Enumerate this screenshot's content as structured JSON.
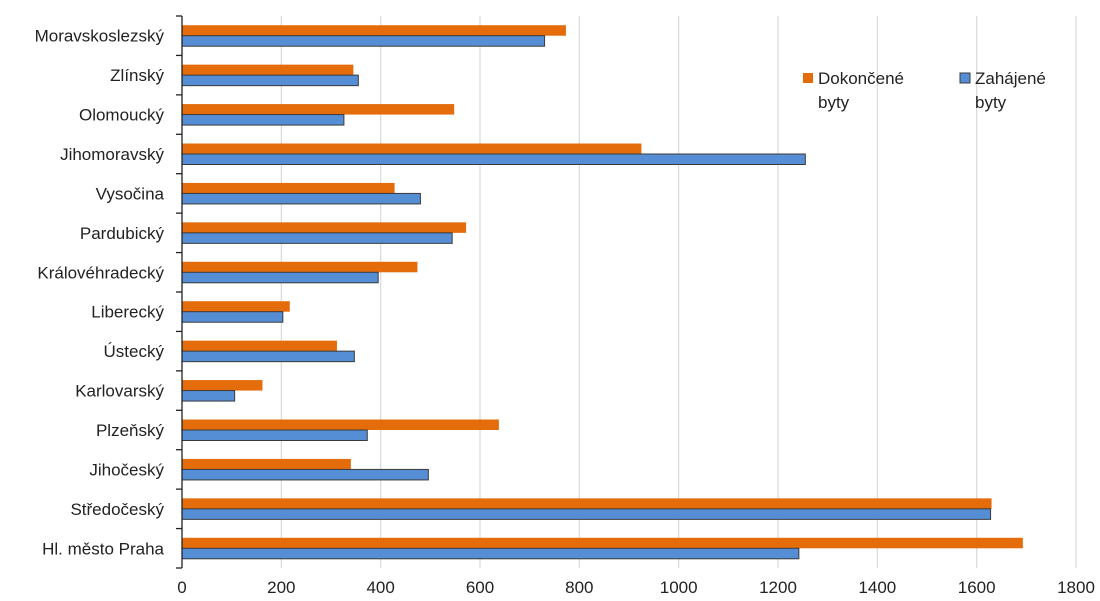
{
  "chart_data": {
    "type": "bar",
    "orientation": "horizontal",
    "title": "",
    "xlabel": "",
    "ylabel": "",
    "categories": [
      "Moravskoslezský",
      "Zlínský",
      "Olomoucký",
      "Jihomoravský",
      "Vysočina",
      "Pardubický",
      "Královéhradecký",
      "Liberecký",
      "Ústecký",
      "Karlovarský",
      "Plzeňský",
      "Jihočeský",
      "Středočeský",
      "Hl. město Praha"
    ],
    "series": [
      {
        "name": "Dokončené byty",
        "legend_lines": [
          "Dokončené",
          "byty"
        ],
        "color": "#E46C0A",
        "values": [
          773,
          345,
          548,
          925,
          428,
          572,
          474,
          217,
          312,
          162,
          638,
          340,
          1630,
          1693
        ]
      },
      {
        "name": "Zahájené byty",
        "legend_lines": [
          "Zahájené",
          "byty"
        ],
        "color": "#558ED5",
        "values": [
          730,
          355,
          326,
          1255,
          480,
          544,
          395,
          203,
          347,
          106,
          373,
          496,
          1628,
          1242
        ]
      }
    ],
    "xlim": [
      0,
      1800
    ],
    "xticks": [
      "0",
      "200",
      "400",
      "600",
      "800",
      "1000",
      "1200",
      "1400",
      "1600",
      "1800"
    ],
    "grid": "vertical",
    "legend_position": "top-right"
  }
}
